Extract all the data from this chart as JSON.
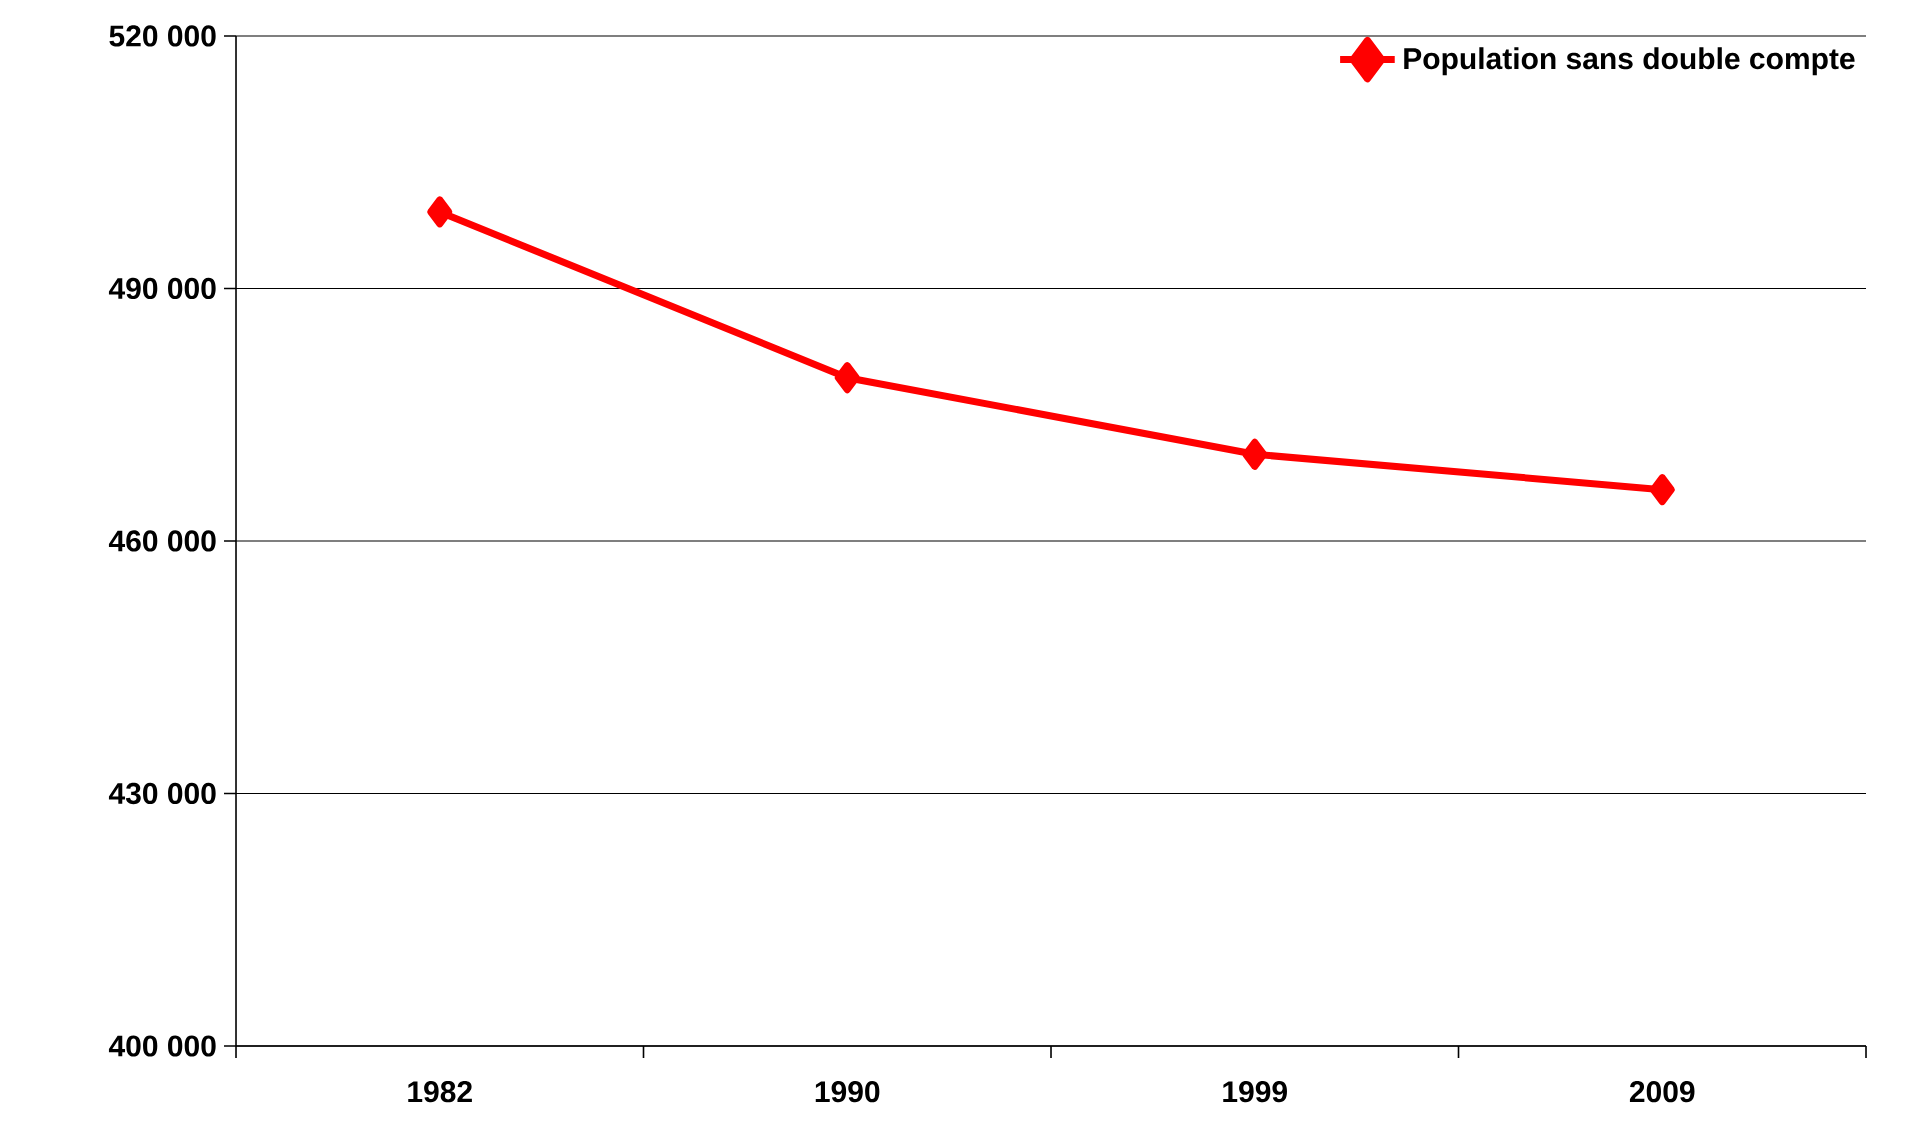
{
  "chart_data": {
    "type": "line",
    "categories": [
      "1982",
      "1990",
      "1999",
      "2009"
    ],
    "series": [
      {
        "name": "Population sans double compte",
        "color": "#ff0000",
        "values": [
          499100,
          479400,
          470300,
          466100
        ]
      }
    ],
    "ylim": [
      400000,
      520000
    ],
    "yticks": [
      {
        "value": 400000,
        "label": "400 000"
      },
      {
        "value": 430000,
        "label": "430 000"
      },
      {
        "value": 460000,
        "label": "460 000"
      },
      {
        "value": 490000,
        "label": "490 000"
      },
      {
        "value": 520000,
        "label": "520 000"
      }
    ],
    "grid": "y",
    "legend": "top right",
    "marker": "diamond",
    "line_style": "solid"
  }
}
